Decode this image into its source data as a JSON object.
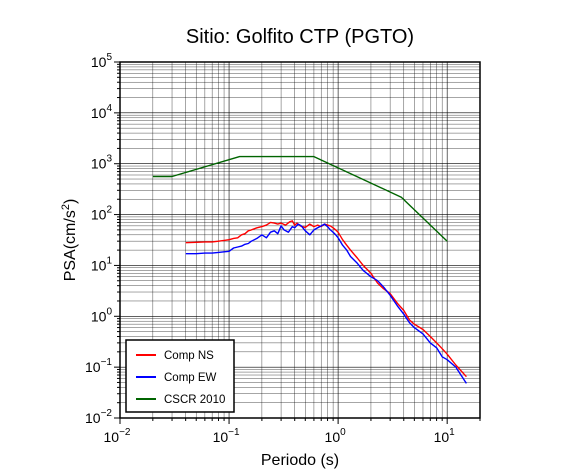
{
  "chart_data": {
    "type": "line",
    "title": "Sitio: Golfito CTP (PGTO)",
    "xlabel": "Periodo (s)",
    "ylabel_main": "PSA(cm/s",
    "ylabel_sup": "2",
    "ylabel_end": ")",
    "xscale": "log",
    "yscale": "log",
    "xlim": [
      0.01,
      20
    ],
    "ylim": [
      0.01,
      100000
    ],
    "grid": true,
    "legend_position": "bottom-left",
    "x_ticks": [
      {
        "value": 0.01,
        "base": "10",
        "exp": "−2"
      },
      {
        "value": 0.1,
        "base": "10",
        "exp": "−1"
      },
      {
        "value": 1,
        "base": "10",
        "exp": "0"
      },
      {
        "value": 10,
        "base": "10",
        "exp": "1"
      }
    ],
    "y_ticks": [
      {
        "value": 0.01,
        "base": "10",
        "exp": "−2"
      },
      {
        "value": 0.1,
        "base": "10",
        "exp": "−1"
      },
      {
        "value": 1,
        "base": "10",
        "exp": "0"
      },
      {
        "value": 10,
        "base": "10",
        "exp": "1"
      },
      {
        "value": 100,
        "base": "10",
        "exp": "2"
      },
      {
        "value": 1000,
        "base": "10",
        "exp": "3"
      },
      {
        "value": 10000,
        "base": "10",
        "exp": "4"
      },
      {
        "value": 100000,
        "base": "10",
        "exp": "5"
      }
    ],
    "series": [
      {
        "name": "Comp NS",
        "color": "#ff0000",
        "points": [
          [
            0.04,
            28
          ],
          [
            0.05,
            28.5
          ],
          [
            0.06,
            29
          ],
          [
            0.07,
            29
          ],
          [
            0.08,
            30
          ],
          [
            0.09,
            31
          ],
          [
            0.1,
            32
          ],
          [
            0.11,
            34
          ],
          [
            0.12,
            35
          ],
          [
            0.13,
            40
          ],
          [
            0.14,
            42
          ],
          [
            0.15,
            48
          ],
          [
            0.16,
            50
          ],
          [
            0.18,
            55
          ],
          [
            0.2,
            58
          ],
          [
            0.22,
            62
          ],
          [
            0.24,
            70
          ],
          [
            0.26,
            68
          ],
          [
            0.28,
            65
          ],
          [
            0.3,
            68
          ],
          [
            0.33,
            62
          ],
          [
            0.36,
            72
          ],
          [
            0.38,
            75
          ],
          [
            0.4,
            62
          ],
          [
            0.42,
            68
          ],
          [
            0.45,
            60
          ],
          [
            0.5,
            56
          ],
          [
            0.55,
            65
          ],
          [
            0.6,
            58
          ],
          [
            0.65,
            62
          ],
          [
            0.7,
            58
          ],
          [
            0.75,
            65
          ],
          [
            0.8,
            62
          ],
          [
            0.85,
            60
          ],
          [
            0.9,
            55
          ],
          [
            0.95,
            50
          ],
          [
            1.0,
            45
          ],
          [
            1.1,
            32
          ],
          [
            1.2,
            25
          ],
          [
            1.3,
            20
          ],
          [
            1.5,
            14
          ],
          [
            1.7,
            10
          ],
          [
            2.0,
            7
          ],
          [
            2.3,
            4.5
          ],
          [
            2.6,
            3.5
          ],
          [
            3.0,
            2.8
          ],
          [
            3.5,
            1.8
          ],
          [
            4.0,
            1.3
          ],
          [
            4.5,
            0.85
          ],
          [
            5.0,
            0.7
          ],
          [
            6.0,
            0.55
          ],
          [
            7.0,
            0.4
          ],
          [
            8.0,
            0.3
          ],
          [
            9.0,
            0.23
          ],
          [
            10.0,
            0.18
          ],
          [
            12.0,
            0.11
          ],
          [
            15.0,
            0.065
          ]
        ]
      },
      {
        "name": "Comp EW",
        "color": "#0000ff",
        "points": [
          [
            0.04,
            17
          ],
          [
            0.05,
            17
          ],
          [
            0.06,
            17.5
          ],
          [
            0.07,
            17.5
          ],
          [
            0.08,
            18
          ],
          [
            0.09,
            18.5
          ],
          [
            0.1,
            19
          ],
          [
            0.11,
            22
          ],
          [
            0.12,
            23
          ],
          [
            0.13,
            24
          ],
          [
            0.14,
            26
          ],
          [
            0.15,
            27
          ],
          [
            0.16,
            30
          ],
          [
            0.18,
            34
          ],
          [
            0.2,
            40
          ],
          [
            0.22,
            35
          ],
          [
            0.24,
            45
          ],
          [
            0.26,
            48
          ],
          [
            0.28,
            42
          ],
          [
            0.3,
            60
          ],
          [
            0.32,
            50
          ],
          [
            0.35,
            45
          ],
          [
            0.38,
            58
          ],
          [
            0.4,
            55
          ],
          [
            0.43,
            65
          ],
          [
            0.46,
            60
          ],
          [
            0.5,
            48
          ],
          [
            0.55,
            40
          ],
          [
            0.6,
            50
          ],
          [
            0.65,
            55
          ],
          [
            0.7,
            60
          ],
          [
            0.75,
            65
          ],
          [
            0.8,
            58
          ],
          [
            0.85,
            50
          ],
          [
            0.9,
            45
          ],
          [
            0.95,
            40
          ],
          [
            1.0,
            35
          ],
          [
            1.1,
            25
          ],
          [
            1.2,
            20
          ],
          [
            1.3,
            15
          ],
          [
            1.5,
            11
          ],
          [
            1.7,
            8
          ],
          [
            2.0,
            6
          ],
          [
            2.3,
            5
          ],
          [
            2.6,
            3.8
          ],
          [
            3.0,
            2.6
          ],
          [
            3.5,
            1.6
          ],
          [
            4.0,
            1.1
          ],
          [
            4.5,
            0.75
          ],
          [
            5.0,
            0.6
          ],
          [
            6.0,
            0.45
          ],
          [
            7.0,
            0.3
          ],
          [
            8.0,
            0.24
          ],
          [
            9.0,
            0.16
          ],
          [
            10.0,
            0.14
          ],
          [
            12.0,
            0.1
          ],
          [
            15.0,
            0.048
          ]
        ]
      },
      {
        "name": "CSCR 2010",
        "color": "#006400",
        "points": [
          [
            0.02,
            560
          ],
          [
            0.03,
            560
          ],
          [
            0.125,
            1380
          ],
          [
            0.6,
            1380
          ],
          [
            3.8,
            220
          ],
          [
            10.0,
            30
          ]
        ]
      }
    ]
  }
}
